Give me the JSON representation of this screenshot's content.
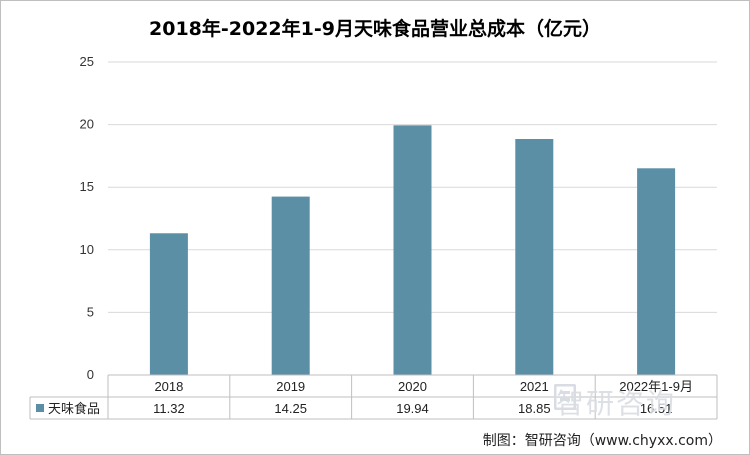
{
  "title": "2018年-2022年1-9月天味食品营业总成本（亿元）",
  "source": "制图：智研咨询（www.chyxx.com）",
  "watermark": "智研咨询",
  "colors": {
    "bar": "#5b8fa6",
    "grid": "#d9d9d9",
    "axis": "#bfbfbf"
  },
  "chart_data": {
    "type": "bar",
    "title": "2018年-2022年1-9月天味食品营业总成本（亿元）",
    "categories": [
      "2018",
      "2019",
      "2020",
      "2021",
      "2022年1-9月"
    ],
    "series": [
      {
        "name": "天味食品",
        "values": [
          11.32,
          14.25,
          19.94,
          18.85,
          16.51
        ]
      }
    ],
    "ylim": [
      0,
      25
    ],
    "yticks": [
      0,
      5,
      10,
      15,
      20,
      25
    ],
    "grid": true,
    "legend": "data-table"
  }
}
